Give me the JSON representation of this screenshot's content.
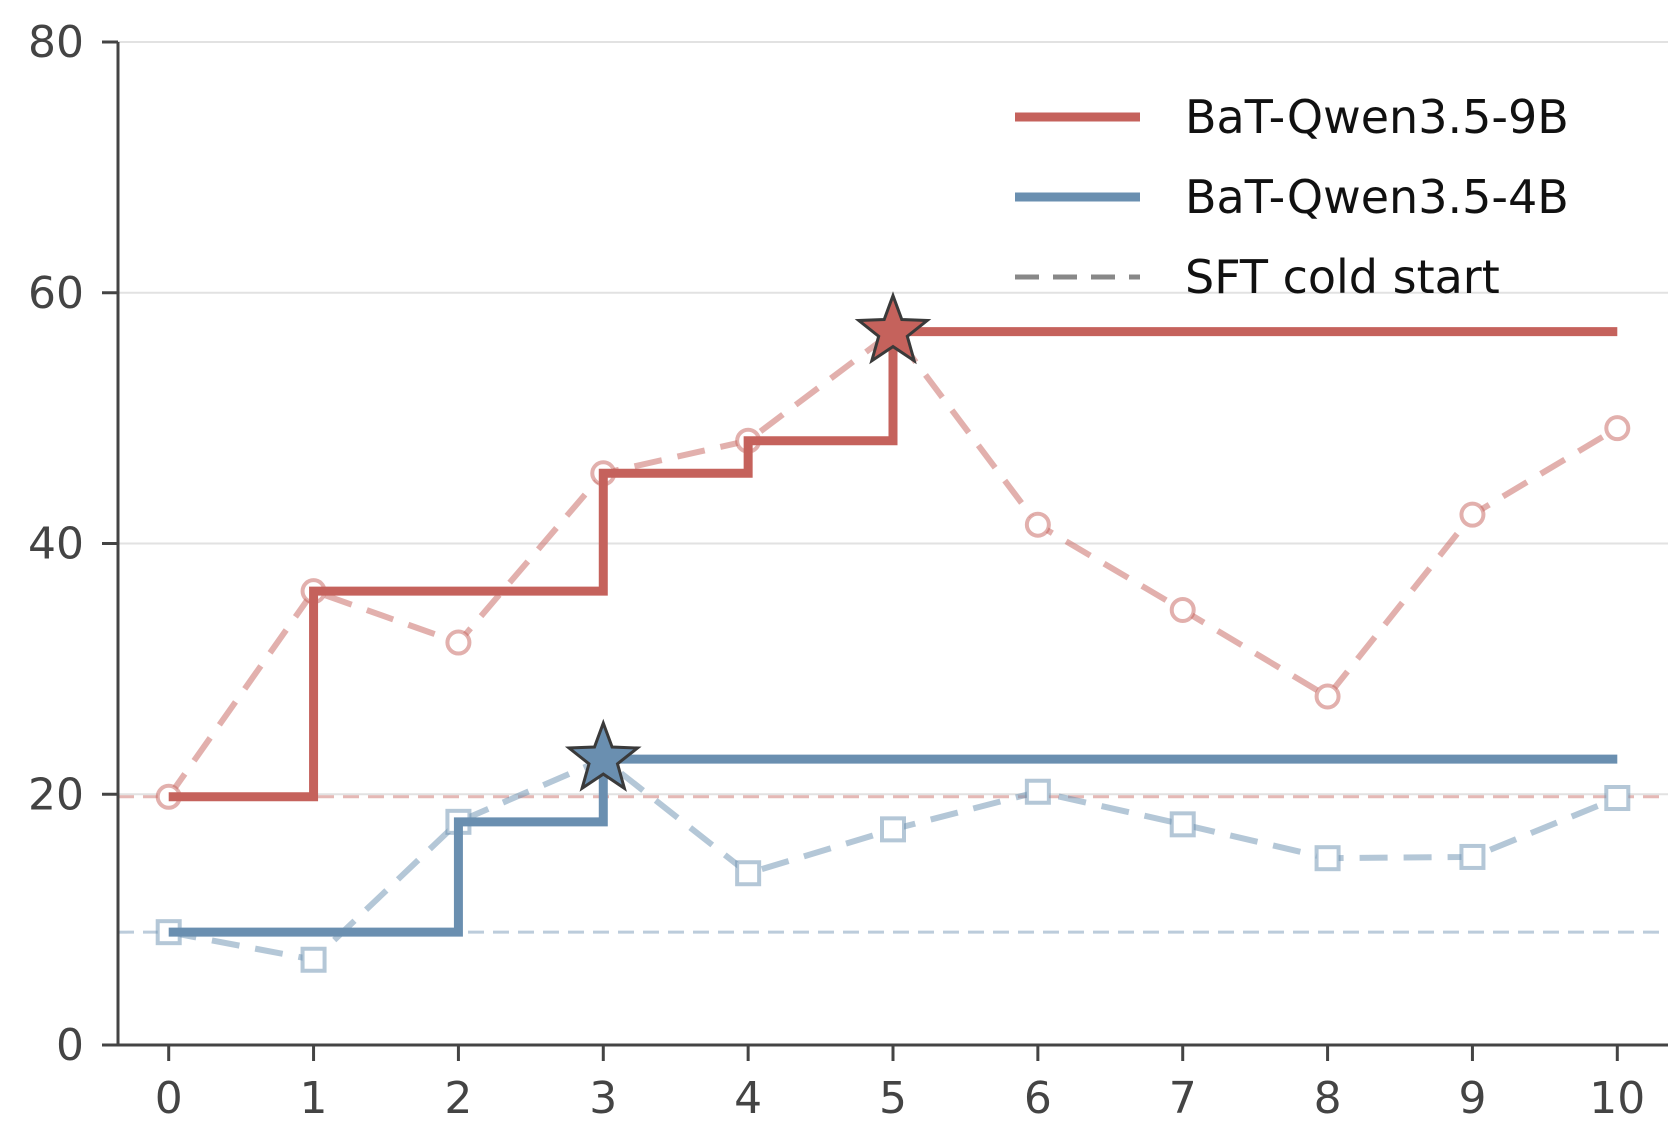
{
  "chart_data": {
    "type": "line",
    "title": "",
    "xlabel": "",
    "ylabel": "",
    "x": [
      0,
      1,
      2,
      3,
      4,
      5,
      6,
      7,
      8,
      9,
      10
    ],
    "xlim": [
      -0.35,
      10.35
    ],
    "ylim": [
      0,
      80
    ],
    "xticks": [
      "0",
      "1",
      "2",
      "3",
      "4",
      "5",
      "6",
      "7",
      "8",
      "9",
      "10"
    ],
    "yticks": [
      "0",
      "20",
      "40",
      "60",
      "80"
    ],
    "grid": "horizontal",
    "legend_position": "top-right",
    "series": [
      {
        "name": "BaT-Qwen3.5-9B",
        "color": "#c5625c",
        "values": [
          19.8,
          36.2,
          32.1,
          45.6,
          48.2,
          56.9,
          41.5,
          34.7,
          27.8,
          42.3,
          49.2
        ],
        "best_so_far": [
          19.8,
          36.2,
          36.2,
          45.6,
          48.2,
          56.9,
          56.9,
          56.9,
          56.9,
          56.9,
          56.9
        ],
        "best_index": 5,
        "marker": "circle",
        "cold_start": 19.8
      },
      {
        "name": "BaT-Qwen3.5-4B",
        "color": "#6a8fb0",
        "values": [
          9.0,
          6.8,
          17.8,
          22.8,
          13.7,
          17.2,
          20.2,
          17.6,
          14.9,
          15.0,
          19.7
        ],
        "best_so_far": [
          9.0,
          9.0,
          17.8,
          22.8,
          22.8,
          22.8,
          22.8,
          22.8,
          22.8,
          22.8,
          22.8
        ],
        "best_index": 3,
        "marker": "square",
        "cold_start": 9.0
      }
    ],
    "legend": [
      {
        "label": "BaT-Qwen3.5-9B",
        "style": "solid",
        "color": "#c5625c"
      },
      {
        "label": "BaT-Qwen3.5-4B",
        "style": "solid",
        "color": "#6a8fb0"
      },
      {
        "label": "SFT cold start",
        "style": "dashed",
        "color": "#888888"
      }
    ]
  }
}
